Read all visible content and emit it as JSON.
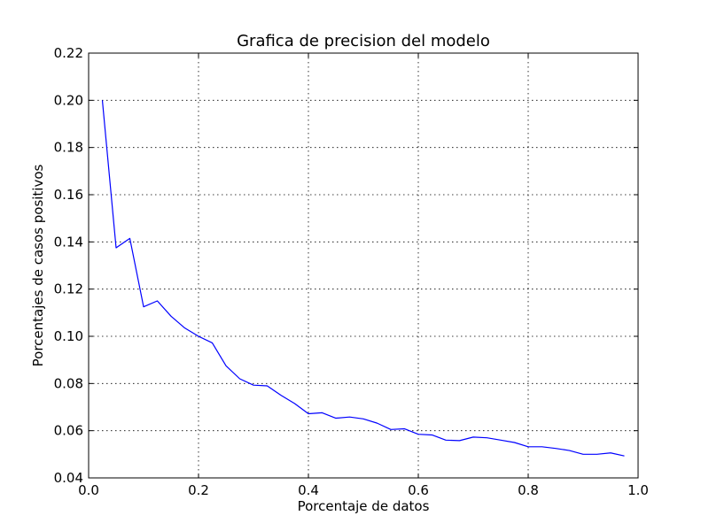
{
  "chart_data": {
    "type": "line",
    "title": "Grafica de precision del modelo",
    "xlabel": "Porcentaje de datos",
    "ylabel": "Porcentajes de casos positivos",
    "xlim": [
      0.0,
      1.0
    ],
    "ylim": [
      0.04,
      0.22
    ],
    "xticks": [
      "0.0",
      "0.2",
      "0.4",
      "0.6",
      "0.8",
      "1.0"
    ],
    "yticks": [
      "0.04",
      "0.06",
      "0.08",
      "0.10",
      "0.12",
      "0.14",
      "0.16",
      "0.18",
      "0.20",
      "0.22"
    ],
    "grid": true,
    "series": [
      {
        "color": "#0000ff",
        "x": [
          0.025,
          0.05,
          0.075,
          0.1,
          0.125,
          0.15,
          0.175,
          0.2,
          0.225,
          0.25,
          0.275,
          0.3,
          0.325,
          0.35,
          0.375,
          0.4,
          0.425,
          0.45,
          0.475,
          0.5,
          0.525,
          0.55,
          0.575,
          0.6,
          0.625,
          0.65,
          0.675,
          0.7,
          0.725,
          0.75,
          0.775,
          0.8,
          0.825,
          0.85,
          0.875,
          0.9,
          0.925,
          0.95,
          0.975
        ],
        "y": [
          0.2,
          0.1375,
          0.1415,
          0.1125,
          0.115,
          0.1085,
          0.1035,
          0.1,
          0.0972,
          0.0875,
          0.082,
          0.0793,
          0.079,
          0.075,
          0.0715,
          0.0672,
          0.0676,
          0.0653,
          0.0658,
          0.065,
          0.0632,
          0.0605,
          0.0608,
          0.0585,
          0.0582,
          0.056,
          0.0558,
          0.0573,
          0.057,
          0.056,
          0.055,
          0.0532,
          0.0532,
          0.0525,
          0.0516,
          0.05,
          0.05,
          0.0506,
          0.0493
        ]
      }
    ]
  }
}
